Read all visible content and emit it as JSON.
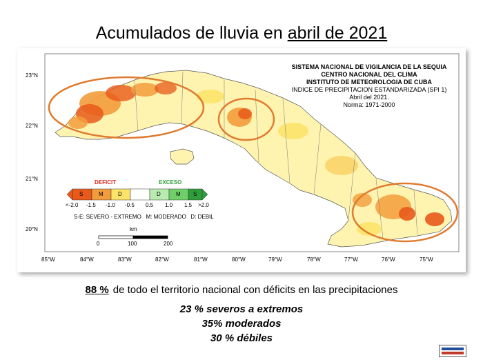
{
  "title_prefix": "Acumulados de lluvia en ",
  "title_emph": "abril de 2021",
  "map_header": [
    "SISTEMA NACIONAL DE VIGILANCIA DE LA SEQUIA",
    "CENTRO NACIONAL DEL CLIMA",
    "INSTITUTO DE METEOROLOGIA DE CUBA",
    "INDICE DE PRECIPITACION ESTANDARIZADA (SPI 1)",
    "Abril del 2021.",
    "Norma: 1971-2000"
  ],
  "lat_labels": [
    "23°N",
    "22°N",
    "21°N",
    "20°N"
  ],
  "lon_labels": [
    "85°W",
    "84°W",
    "83°W",
    "82°W",
    "81°W",
    "80°W",
    "79°W",
    "78°W",
    "77°W",
    "76°W",
    "75°W"
  ],
  "legend": {
    "deficit_label": "DEFICIT",
    "excess_label": "EXCESO",
    "classes": [
      {
        "letter": "S",
        "color": "#e8591a"
      },
      {
        "letter": "M",
        "color": "#f39c3c"
      },
      {
        "letter": "D",
        "color": "#fce36a"
      },
      {
        "letter": "",
        "color": "#ffffff"
      },
      {
        "letter": "D",
        "color": "#b9ebb0"
      },
      {
        "letter": "M",
        "color": "#6fd06a"
      },
      {
        "letter": "S",
        "color": "#2e9e3a"
      }
    ],
    "ticks": [
      "<-2.0",
      "-1.5",
      "-1.0",
      "-0.5",
      "0.5",
      "1.0",
      "1.5",
      ">2.0"
    ],
    "key": "S-E: SEVERO - EXTREMO   M: MODERADO   D: DEBIL",
    "scale_unit": "km",
    "scale_ticks": [
      "0",
      "100",
      "200"
    ]
  },
  "summary_pct": "88 %",
  "summary_text": "de todo el territorio nacional con déficits en las precipitaciones",
  "stats": [
    "23 % severos a extremos",
    "35% moderados",
    "30 % débiles"
  ],
  "colors": {
    "severe": "#e8591a",
    "moderate": "#f39c3c",
    "weak": "#fce36a",
    "normal": "#fff7c4",
    "circle": "#e07a2e"
  }
}
